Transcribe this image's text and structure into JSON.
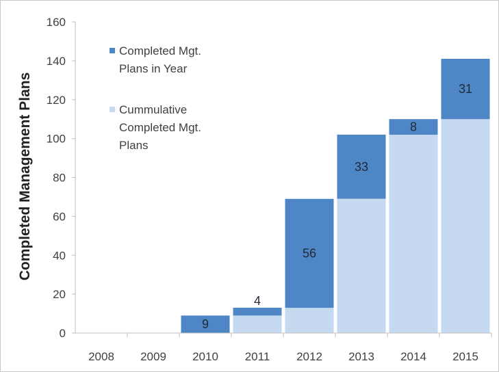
{
  "chart_data": {
    "type": "bar",
    "stacked": true,
    "categories": [
      "2008",
      "2009",
      "2010",
      "2011",
      "2012",
      "2013",
      "2014",
      "2015"
    ],
    "series": [
      {
        "name": "Cummulative Completed Mgt. Plans",
        "color": "#c5d9f1",
        "values": [
          0,
          0,
          0,
          9,
          13,
          69,
          102,
          110
        ]
      },
      {
        "name": "Completed Mgt. Plans in Year",
        "color": "#4f86c6",
        "values": [
          0,
          0,
          9,
          4,
          56,
          33,
          8,
          31
        ]
      }
    ],
    "data_labels": [
      "",
      "",
      "9",
      "4",
      "56",
      "33",
      "8",
      "31"
    ],
    "ylabel": "Completed Management Plans",
    "xlabel": "",
    "ylim": [
      0,
      160
    ],
    "yticks": [
      "0",
      "20",
      "40",
      "60",
      "80",
      "100",
      "120",
      "140",
      "160"
    ],
    "grid": false,
    "legend": {
      "position": "top-left",
      "entries": [
        {
          "lines": [
            "Completed Mgt.",
            "Plans in Year"
          ],
          "color": "#4f86c6"
        },
        {
          "lines": [
            "Cummulative",
            "Completed Mgt.",
            "Plans"
          ],
          "color": "#c5d9f1"
        }
      ]
    }
  }
}
